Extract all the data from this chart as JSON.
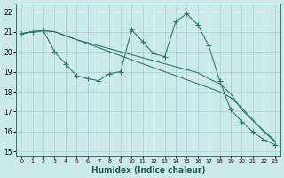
{
  "xlabel": "Humidex (Indice chaleur)",
  "ylabel": "",
  "background_color": "#cdeaea",
  "grid_color": "#aed4d4",
  "line_color": "#2d7a6a",
  "xlim": [
    -0.5,
    23.5
  ],
  "ylim": [
    14.8,
    22.4
  ],
  "yticks": [
    15,
    16,
    17,
    18,
    19,
    20,
    21,
    22
  ],
  "xticks": [
    0,
    1,
    2,
    3,
    4,
    5,
    6,
    7,
    8,
    9,
    10,
    11,
    12,
    13,
    14,
    15,
    16,
    17,
    18,
    19,
    20,
    21,
    22,
    23
  ],
  "line1_x": [
    0,
    1,
    2,
    3,
    4,
    5,
    6,
    7,
    8,
    9,
    10,
    11,
    12,
    13,
    14,
    15,
    16,
    17,
    18,
    19,
    20,
    21,
    22,
    23
  ],
  "line1_y": [
    20.9,
    21.0,
    21.05,
    21.0,
    20.8,
    20.6,
    20.4,
    20.2,
    20.0,
    19.8,
    19.6,
    19.4,
    19.2,
    19.0,
    18.8,
    18.6,
    18.4,
    18.2,
    18.0,
    17.7,
    17.2,
    16.6,
    16.0,
    15.5
  ],
  "line2_x": [
    0,
    1,
    2,
    3,
    4,
    5,
    6,
    7,
    8,
    9,
    10,
    11,
    12,
    13,
    14,
    15,
    16,
    17,
    18,
    19,
    20,
    21,
    22,
    23
  ],
  "line2_y": [
    20.9,
    21.0,
    21.05,
    20.0,
    19.4,
    18.8,
    18.65,
    18.55,
    18.9,
    19.0,
    21.1,
    20.5,
    19.9,
    19.75,
    21.5,
    21.9,
    21.35,
    20.3,
    18.55,
    17.1,
    16.5,
    16.0,
    15.6,
    15.35
  ],
  "line3_x": [
    0,
    1,
    2,
    3,
    4,
    5,
    6,
    7,
    8,
    9,
    10,
    11,
    12,
    13,
    14,
    15,
    16,
    17,
    18,
    19,
    20,
    21,
    22,
    23
  ],
  "line3_y": [
    20.9,
    21.0,
    21.05,
    21.0,
    20.8,
    20.6,
    20.45,
    20.3,
    20.15,
    20.0,
    19.85,
    19.7,
    19.55,
    19.4,
    19.25,
    19.1,
    18.95,
    18.65,
    18.4,
    17.9,
    17.1,
    16.55,
    16.05,
    15.55
  ]
}
